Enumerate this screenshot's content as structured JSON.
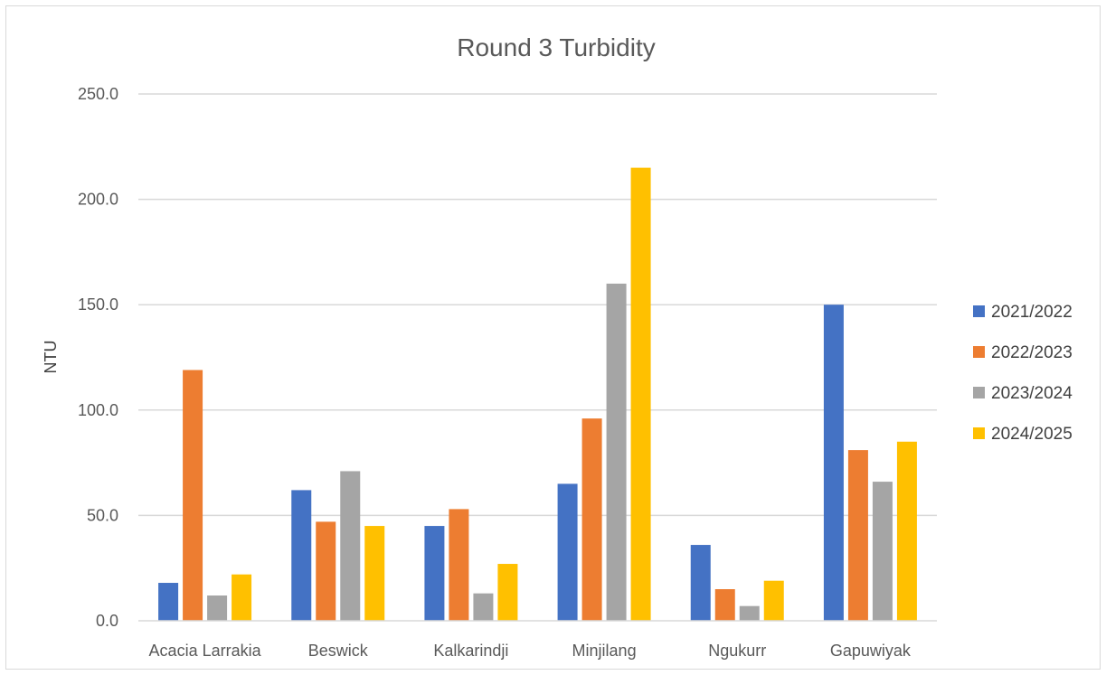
{
  "chart_data": {
    "type": "bar",
    "title": "Round 3 Turbidity",
    "xlabel": "",
    "ylabel": "NTU",
    "ylim": [
      0,
      250
    ],
    "yticks": [
      "0.0",
      "50.0",
      "100.0",
      "150.0",
      "200.0",
      "250.0"
    ],
    "ytick_values": [
      0,
      50,
      100,
      150,
      200,
      250
    ],
    "grid": true,
    "legend_position": "right",
    "categories": [
      "Acacia Larrakia",
      "Beswick",
      "Kalkarindji",
      "Minjilang",
      "Ngukurr",
      "Gapuwiyak"
    ],
    "series": [
      {
        "name": "2021/2022",
        "color": "#4472c4",
        "values": [
          18,
          62,
          45,
          65,
          36,
          150
        ]
      },
      {
        "name": "2022/2023",
        "color": "#ed7d31",
        "values": [
          119,
          47,
          53,
          96,
          15,
          81
        ]
      },
      {
        "name": "2023/2024",
        "color": "#a5a5a5",
        "values": [
          12,
          71,
          13,
          160,
          7,
          66
        ]
      },
      {
        "name": "2024/2025",
        "color": "#ffc000",
        "values": [
          22,
          45,
          27,
          215,
          19,
          85
        ]
      }
    ]
  }
}
